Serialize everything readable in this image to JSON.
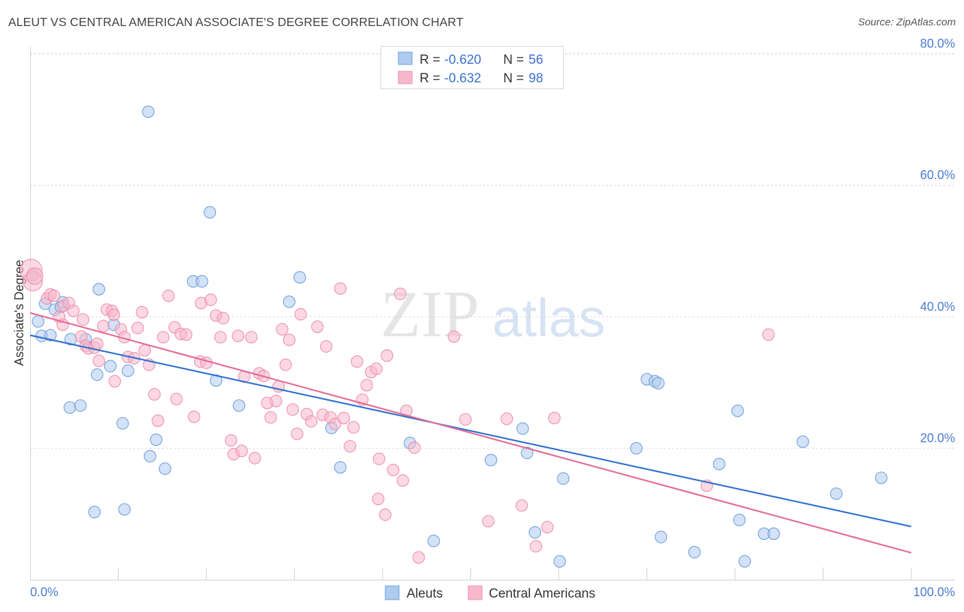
{
  "header": {
    "title": "ALEUT VS CENTRAL AMERICAN ASSOCIATE'S DEGREE CORRELATION CHART",
    "source": "Source: ZipAtlas.com"
  },
  "watermark": {
    "zip": "ZIP",
    "atlas": "atlas"
  },
  "legend": {
    "rows": [
      {
        "r_label": "R =",
        "r_value": "-0.620",
        "n_label": "N =",
        "n_value": "56",
        "color": "#aecbf0"
      },
      {
        "r_label": "R =",
        "r_value": "-0.632",
        "n_label": "N =",
        "n_value": "98",
        "color": "#f7b8cc"
      }
    ]
  },
  "chart_data": {
    "type": "scatter",
    "title": "ALEUT VS CENTRAL AMERICAN ASSOCIATE'S DEGREE CORRELATION CHART",
    "xlabel": "",
    "ylabel": "Associate's Degree",
    "xlim": [
      0,
      100
    ],
    "ylim": [
      0,
      82
    ],
    "x_tick_labels": [
      "0.0%",
      "100.0%"
    ],
    "y_ticks": [
      20,
      40,
      60,
      80
    ],
    "y_tick_labels": [
      "20.0%",
      "40.0%",
      "60.0%",
      "80.0%"
    ],
    "grid": true,
    "legend_position": "top-center",
    "series": [
      {
        "name": "Aleuts",
        "color": "#aecbf0",
        "stroke": "#6f9fdb",
        "line_color": "#2f6fcf",
        "trend": [
          [
            0,
            37.2
          ],
          [
            100,
            8.1
          ]
        ],
        "points": [
          [
            0.3,
            46.4
          ],
          [
            0.9,
            39.3
          ],
          [
            1.3,
            37.1
          ],
          [
            1.7,
            42
          ],
          [
            2.3,
            37.2
          ],
          [
            2.8,
            41.1
          ],
          [
            3.7,
            42.2
          ],
          [
            3.5,
            41.5
          ],
          [
            4.6,
            36.6
          ],
          [
            4.5,
            26.2
          ],
          [
            5.7,
            26.5
          ],
          [
            6.3,
            36.6
          ],
          [
            7.3,
            10.3
          ],
          [
            7.6,
            31.2
          ],
          [
            7.8,
            44.2
          ],
          [
            9.1,
            32.5
          ],
          [
            9.5,
            38.8
          ],
          [
            10.5,
            23.8
          ],
          [
            10.7,
            10.7
          ],
          [
            11.1,
            31.8
          ],
          [
            13.4,
            71.2
          ],
          [
            13.6,
            18.8
          ],
          [
            14.3,
            21.3
          ],
          [
            15.3,
            16.9
          ],
          [
            18.5,
            45.4
          ],
          [
            19.5,
            45.4
          ],
          [
            20.4,
            55.9
          ],
          [
            21.1,
            30.3
          ],
          [
            23.7,
            26.5
          ],
          [
            29.4,
            42.3
          ],
          [
            30.6,
            46
          ],
          [
            34.2,
            23.1
          ],
          [
            35.2,
            17.1
          ],
          [
            43.1,
            20.8
          ],
          [
            45.8,
            5.9
          ],
          [
            52.3,
            18.2
          ],
          [
            55.9,
            23
          ],
          [
            56.4,
            19.3
          ],
          [
            57.3,
            7.2
          ],
          [
            60.1,
            2.8
          ],
          [
            60.5,
            15.4
          ],
          [
            68.8,
            20
          ],
          [
            70,
            30.5
          ],
          [
            70.9,
            30.2
          ],
          [
            71.3,
            29.9
          ],
          [
            71.6,
            6.5
          ],
          [
            75.4,
            4.2
          ],
          [
            78.2,
            17.6
          ],
          [
            80.3,
            25.7
          ],
          [
            80.5,
            9.1
          ],
          [
            81.1,
            2.8
          ],
          [
            83.3,
            7
          ],
          [
            84.4,
            7
          ],
          [
            87.7,
            21
          ],
          [
            91.5,
            13.1
          ],
          [
            96.6,
            15.5
          ]
        ]
      },
      {
        "name": "Central Americans",
        "color": "#f7b8cc",
        "stroke": "#ee8fab",
        "line_color": "#e36b93",
        "trend": [
          [
            0,
            40.6
          ],
          [
            100,
            4.1
          ]
        ],
        "points": [
          [
            0.1,
            47.1
          ],
          [
            0.3,
            45.4
          ],
          [
            0.5,
            46.2
          ],
          [
            1.9,
            42.8
          ],
          [
            2.3,
            43.4
          ],
          [
            2.7,
            43.2
          ],
          [
            3.3,
            40
          ],
          [
            3.7,
            38.8
          ],
          [
            3.8,
            41.7
          ],
          [
            4.4,
            42.1
          ],
          [
            4.9,
            40.9
          ],
          [
            5.8,
            37
          ],
          [
            6,
            39.6
          ],
          [
            6.3,
            35.6
          ],
          [
            6.6,
            35.2
          ],
          [
            7.3,
            35.3
          ],
          [
            7.6,
            35.9
          ],
          [
            7.8,
            33.3
          ],
          [
            8.3,
            38.6
          ],
          [
            8.7,
            41.1
          ],
          [
            9.3,
            40.9
          ],
          [
            9.5,
            40.3
          ],
          [
            9.6,
            30.2
          ],
          [
            10.3,
            38.1
          ],
          [
            10.7,
            36.9
          ],
          [
            11.1,
            33.9
          ],
          [
            11.8,
            33.7
          ],
          [
            12.2,
            38.3
          ],
          [
            12.7,
            40.7
          ],
          [
            13,
            34.9
          ],
          [
            13.5,
            32.7
          ],
          [
            14.1,
            28.2
          ],
          [
            14.5,
            24.2
          ],
          [
            15.1,
            36.9
          ],
          [
            15.7,
            43.2
          ],
          [
            16.4,
            38.4
          ],
          [
            16.6,
            27.5
          ],
          [
            17.1,
            37.4
          ],
          [
            17.7,
            37.3
          ],
          [
            18.6,
            24.8
          ],
          [
            19.3,
            33.2
          ],
          [
            19.4,
            42.1
          ],
          [
            20,
            33
          ],
          [
            20.5,
            42.6
          ],
          [
            21.1,
            40.2
          ],
          [
            21.6,
            36.9
          ],
          [
            21.9,
            39.8
          ],
          [
            22.8,
            21.2
          ],
          [
            23.1,
            19.1
          ],
          [
            23.6,
            37.1
          ],
          [
            24,
            19.6
          ],
          [
            24.3,
            30.9
          ],
          [
            25.1,
            36.9
          ],
          [
            25.5,
            18.5
          ],
          [
            26,
            31.4
          ],
          [
            26.5,
            31
          ],
          [
            26.9,
            26.9
          ],
          [
            27.3,
            24.7
          ],
          [
            27.9,
            27.2
          ],
          [
            28.2,
            29.4
          ],
          [
            28.6,
            38.1
          ],
          [
            29,
            32.7
          ],
          [
            29.4,
            36.5
          ],
          [
            29.8,
            25.9
          ],
          [
            30.3,
            22.2
          ],
          [
            30.7,
            40.4
          ],
          [
            31.4,
            25.2
          ],
          [
            31.9,
            24.1
          ],
          [
            32.6,
            38.5
          ],
          [
            33.2,
            25.1
          ],
          [
            33.6,
            35.5
          ],
          [
            34.1,
            24.7
          ],
          [
            34.6,
            23.7
          ],
          [
            35.2,
            44.3
          ],
          [
            35.6,
            24.6
          ],
          [
            36.3,
            20.3
          ],
          [
            36.7,
            23.2
          ],
          [
            37.1,
            33.2
          ],
          [
            37.7,
            27.4
          ],
          [
            38.2,
            29.6
          ],
          [
            38.7,
            31.6
          ],
          [
            39.3,
            32.1
          ],
          [
            39.5,
            12.3
          ],
          [
            39.6,
            18.4
          ],
          [
            40.3,
            9.9
          ],
          [
            40.5,
            34.1
          ],
          [
            41.2,
            16.7
          ],
          [
            42,
            43.5
          ],
          [
            42.3,
            15.1
          ],
          [
            42.7,
            25.7
          ],
          [
            44.1,
            3.4
          ],
          [
            43.6,
            20.1
          ],
          [
            48.1,
            37
          ],
          [
            49.4,
            24.4
          ],
          [
            52,
            8.9
          ],
          [
            54.1,
            24.5
          ],
          [
            55.8,
            11.3
          ],
          [
            57.4,
            5.1
          ]
        ],
        "extra_points": [
          [
            58.7,
            8
          ],
          [
            83.8,
            37.3
          ],
          [
            76.8,
            14.3
          ],
          [
            59.5,
            24.6
          ]
        ]
      }
    ]
  },
  "bottom_legend": {
    "items": [
      {
        "label": "Aleuts",
        "color": "#aecbf0"
      },
      {
        "label": "Central Americans",
        "color": "#f7b8cc"
      }
    ]
  }
}
